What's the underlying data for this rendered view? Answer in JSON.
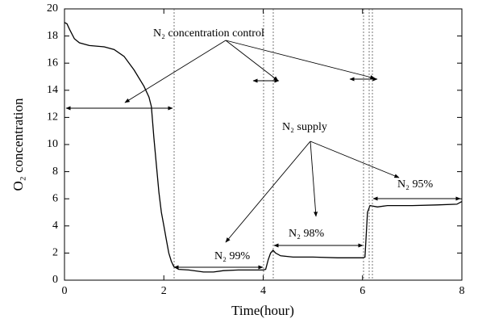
{
  "chart_data": {
    "type": "line",
    "xlabel": "Time(hour)",
    "ylabel": "O₂ concentration",
    "xlim": [
      0,
      8
    ],
    "xticks": [
      0,
      2,
      4,
      6,
      8
    ],
    "ylim": [
      0,
      20
    ],
    "yticks": [
      0,
      2,
      4,
      6,
      8,
      10,
      12,
      14,
      16,
      18,
      20
    ],
    "color": "#000000",
    "x": [
      0,
      0.05,
      0.1,
      0.2,
      0.3,
      0.5,
      0.8,
      1.0,
      1.2,
      1.4,
      1.6,
      1.7,
      1.75,
      1.8,
      1.85,
      1.9,
      1.95,
      2.0,
      2.05,
      2.1,
      2.15,
      2.2,
      2.3,
      2.5,
      2.8,
      3.0,
      3.2,
      3.5,
      3.8,
      4.0,
      4.05,
      4.1,
      4.15,
      4.2,
      4.25,
      4.35,
      4.6,
      5.0,
      5.5,
      6.0,
      6.05,
      6.1,
      6.15,
      6.3,
      6.5,
      7.0,
      7.5,
      7.9,
      8.0
    ],
    "values": [
      19.0,
      18.9,
      18.5,
      17.8,
      17.5,
      17.3,
      17.2,
      17.0,
      16.5,
      15.5,
      14.3,
      13.5,
      12.8,
      10.5,
      8.5,
      6.5,
      5.0,
      4.0,
      3.0,
      2.0,
      1.4,
      1.0,
      0.8,
      0.75,
      0.6,
      0.6,
      0.7,
      0.75,
      0.75,
      0.75,
      0.8,
      1.5,
      2.0,
      2.2,
      2.0,
      1.8,
      1.7,
      1.7,
      1.65,
      1.65,
      1.7,
      5.0,
      5.5,
      5.4,
      5.5,
      5.5,
      5.55,
      5.6,
      5.8
    ],
    "annotations": [
      "N₂ concentration control",
      "N₂ supply",
      "N₂ 99%",
      "N₂ 98%",
      "N₂ 95%"
    ]
  }
}
